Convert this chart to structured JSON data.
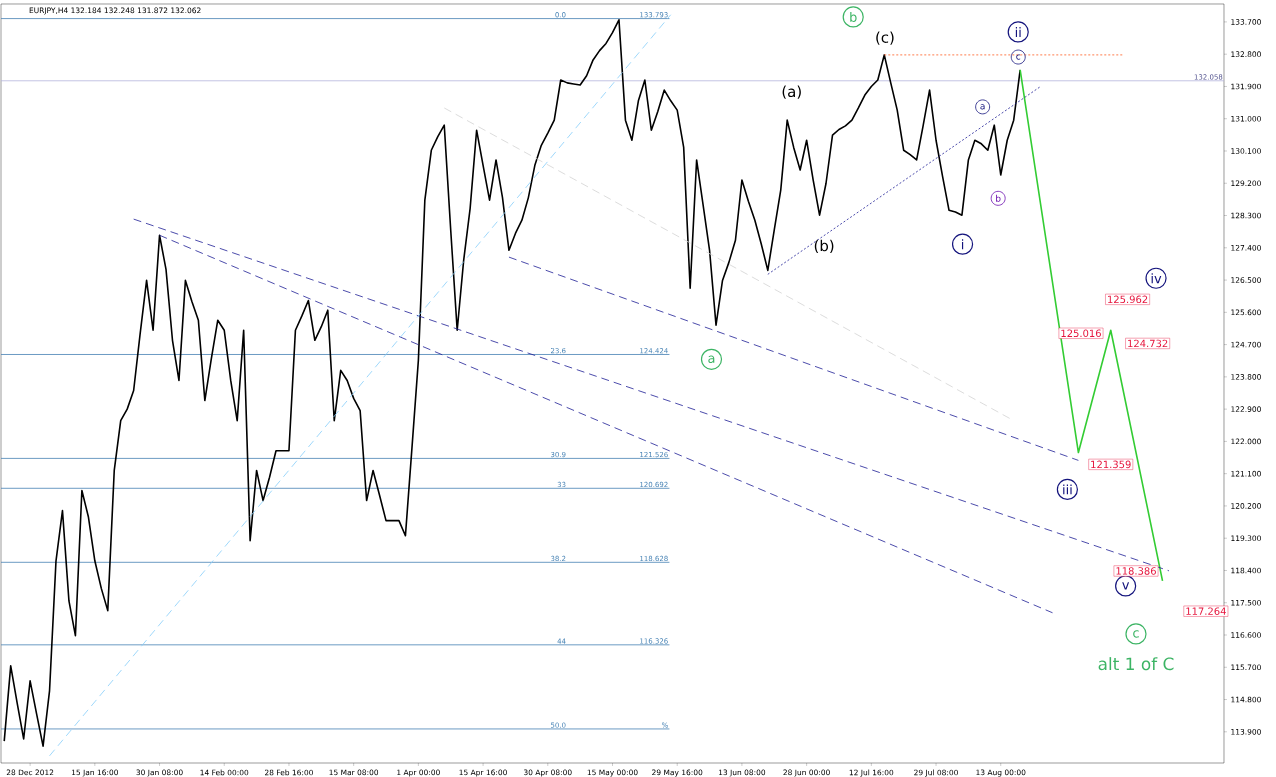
{
  "chart_data": {
    "type": "line",
    "title": "EURJPY,H4  132.184 132.248 131.872 132.062",
    "categories": [
      null,
      null,
      null,
      null,
      "28 Dec 2012",
      null,
      null,
      null,
      null,
      null,
      null,
      null,
      null,
      null,
      "15 Jan 16:00",
      null,
      null,
      null,
      null,
      null,
      null,
      null,
      null,
      null,
      "30 Jan 08:00",
      null,
      null,
      null,
      null,
      null,
      null,
      null,
      null,
      null,
      "14 Feb 00:00",
      null,
      null,
      null,
      null,
      null,
      null,
      null,
      null,
      null,
      "28 Feb 16:00",
      null,
      null,
      null,
      null,
      null,
      null,
      null,
      null,
      null,
      "15 Mar 08:00",
      null,
      null,
      null,
      null,
      null,
      null,
      null,
      null,
      null,
      "1 Apr 00:00",
      null,
      null,
      null,
      null,
      null,
      null,
      null,
      null,
      null,
      "15 Apr 16:00",
      null,
      null,
      null,
      null,
      null,
      null,
      null,
      null,
      null,
      "30 Apr 08:00",
      null,
      null,
      null,
      null,
      null,
      null,
      null,
      null,
      null,
      "15 May 00:00",
      null,
      null,
      null,
      null,
      null,
      null,
      null,
      null,
      null,
      "29 May 16:00",
      null,
      null,
      null,
      null,
      null,
      null,
      null,
      null,
      null,
      "13 Jun 08:00",
      null,
      null,
      null,
      null,
      null,
      null,
      null,
      null,
      null,
      "28 Jun 00:00",
      null,
      null,
      null,
      null,
      null,
      null,
      null,
      null,
      null,
      "12 Jul 16:00",
      null,
      null,
      null,
      null,
      null,
      null,
      null,
      null,
      null,
      "29 Jul 08:00",
      null,
      null,
      null,
      null,
      null,
      null,
      null,
      null,
      null,
      "13 Aug 00:00",
      null,
      null,
      null,
      null,
      null,
      null,
      null,
      null,
      null,
      null,
      null,
      null,
      null,
      null,
      null,
      null,
      null,
      null,
      null,
      null,
      null,
      null,
      null,
      null,
      null,
      null,
      null,
      null,
      null,
      null,
      null,
      null,
      null,
      null
    ],
    "ylim": [
      113.03,
      134.2
    ],
    "yticks": [
      {
        "value": 113.9,
        "label": "113.900"
      },
      {
        "value": 114.8,
        "label": "114.800"
      },
      {
        "value": 115.7,
        "label": "115.700"
      },
      {
        "value": 116.6,
        "label": "116.600"
      },
      {
        "value": 117.5,
        "label": "117.500"
      },
      {
        "value": 118.4,
        "label": "118.400"
      },
      {
        "value": 119.3,
        "label": "119.300"
      },
      {
        "value": 120.2,
        "label": "120.200"
      },
      {
        "value": 121.1,
        "label": "121.100"
      },
      {
        "value": 122.0,
        "label": "122.000"
      },
      {
        "value": 122.9,
        "label": "122.900"
      },
      {
        "value": 123.8,
        "label": "123.800"
      },
      {
        "value": 124.7,
        "label": "124.700"
      },
      {
        "value": 125.6,
        "label": "125.600"
      },
      {
        "value": 126.5,
        "label": "126.500"
      },
      {
        "value": 127.4,
        "label": "127.400"
      },
      {
        "value": 128.3,
        "label": "128.300"
      },
      {
        "value": 129.2,
        "label": "129.200"
      },
      {
        "value": 130.1,
        "label": "130.100"
      },
      {
        "value": 131.0,
        "label": "131.000"
      },
      {
        "value": 131.9,
        "label": "131.900"
      },
      {
        "value": 132.8,
        "label": "132.800"
      },
      {
        "value": 133.7,
        "label": "133.700"
      }
    ],
    "series": [
      {
        "color": "#000000",
        "values": [
          113.64,
          115.74,
          114.7,
          113.7,
          115.32,
          114.4,
          113.5,
          115.04,
          118.67,
          120.07,
          117.55,
          116.58,
          120.63,
          119.9,
          118.67,
          117.9,
          117.28,
          121.19,
          122.58,
          122.9,
          123.42,
          125.0,
          126.49,
          125.1,
          127.75,
          126.8,
          124.82,
          123.7,
          126.49,
          125.9,
          125.38,
          123.14,
          124.3,
          125.38,
          125.1,
          123.7,
          122.58,
          125.1,
          119.23,
          121.19,
          120.35,
          121.0,
          121.74,
          121.74,
          121.74,
          125.1,
          125.5,
          125.93,
          124.82,
          125.2,
          125.66,
          122.58,
          123.98,
          123.7,
          123.2,
          122.86,
          120.35,
          121.19,
          120.5,
          119.79,
          119.79,
          119.79,
          119.37,
          121.8,
          124.26,
          128.73,
          130.12,
          130.5,
          130.82,
          127.89,
          125.1,
          127.05,
          128.5,
          130.68,
          129.7,
          128.73,
          129.85,
          128.8,
          127.33,
          127.8,
          128.17,
          128.8,
          129.7,
          130.26,
          130.6,
          130.96,
          132.08,
          132.0,
          131.97,
          131.94,
          132.2,
          132.64,
          132.9,
          133.1,
          133.4,
          133.76,
          130.96,
          130.4,
          131.5,
          132.08,
          130.68,
          131.2,
          131.8,
          131.5,
          131.24,
          130.2,
          126.27,
          129.85,
          128.6,
          127.33,
          125.24,
          126.49,
          127.0,
          127.61,
          129.29,
          128.7,
          128.17,
          127.5,
          126.77,
          127.9,
          129.01,
          130.96,
          130.2,
          129.57,
          130.4,
          129.3,
          128.31,
          129.2,
          130.54,
          130.7,
          130.8,
          130.96,
          131.3,
          131.66,
          131.9,
          132.08,
          132.78,
          132.0,
          131.24,
          130.12,
          130.0,
          129.85,
          130.8,
          131.8,
          130.4,
          129.4,
          128.45,
          128.4,
          128.31,
          129.85,
          130.4,
          130.3,
          130.12,
          130.82,
          129.43,
          130.4,
          130.96,
          132.36,
          null,
          null,
          null,
          null,
          null,
          null,
          null,
          null,
          null,
          null,
          null,
          null,
          null,
          null,
          null,
          null,
          null,
          null,
          null,
          null,
          null,
          null,
          null,
          null,
          null,
          null,
          null,
          null,
          null,
          null,
          null
        ]
      },
      {
        "color": "#33cc33",
        "values": [
          null,
          null,
          null,
          null,
          null,
          null,
          null,
          null,
          null,
          null,
          null,
          null,
          null,
          null,
          null,
          null,
          null,
          null,
          null,
          null,
          null,
          null,
          null,
          null,
          null,
          null,
          null,
          null,
          null,
          null,
          null,
          null,
          null,
          null,
          null,
          null,
          null,
          null,
          null,
          null,
          null,
          null,
          null,
          null,
          null,
          null,
          null,
          null,
          null,
          null,
          null,
          null,
          null,
          null,
          null,
          null,
          null,
          null,
          null,
          null,
          null,
          null,
          null,
          null,
          null,
          null,
          null,
          null,
          null,
          null,
          null,
          null,
          null,
          null,
          null,
          null,
          null,
          null,
          null,
          null,
          null,
          null,
          null,
          null,
          null,
          null,
          null,
          null,
          null,
          null,
          null,
          null,
          null,
          null,
          null,
          null,
          null,
          null,
          null,
          null,
          null,
          null,
          null,
          null,
          null,
          null,
          null,
          null,
          null,
          null,
          null,
          null,
          null,
          null,
          null,
          null,
          null,
          null,
          null,
          null,
          null,
          null,
          null,
          null,
          null,
          null,
          null,
          null,
          null,
          null,
          null,
          null,
          null,
          null,
          null,
          null,
          null,
          null,
          null,
          null,
          null,
          null,
          null,
          null,
          null,
          null,
          null,
          null,
          null,
          null,
          null,
          null,
          null,
          null,
          null,
          null,
          null,
          132.36,
          null,
          null,
          null,
          null,
          null,
          null,
          null,
          null,
          121.69,
          null,
          null,
          null,
          null,
          125.1,
          null,
          null,
          null,
          null,
          null,
          null,
          null,
          118.11,
          null,
          null,
          null,
          null,
          null,
          null,
          null,
          null,
          null
        ]
      },
      {
        "color": "#1e1e96",
        "line_style": "dashed",
        "values": [
          null,
          null,
          null,
          null,
          null,
          null,
          null,
          null,
          null,
          null,
          null,
          null,
          null,
          null,
          null,
          null,
          null,
          null,
          null,
          null,
          128.2,
          null,
          null,
          null,
          null,
          null,
          null,
          null,
          null,
          null,
          null,
          null,
          null,
          null,
          null,
          null,
          null,
          null,
          null,
          null,
          null,
          null,
          null,
          null,
          null,
          null,
          null,
          null,
          null,
          null,
          null,
          null,
          null,
          null,
          null,
          null,
          null,
          null,
          null,
          null,
          null,
          null,
          null,
          null,
          null,
          null,
          null,
          null,
          null,
          null,
          null,
          null,
          null,
          null,
          null,
          null,
          null,
          null,
          null,
          null,
          null,
          null,
          null,
          null,
          null,
          null,
          null,
          null,
          null,
          null,
          null,
          null,
          null,
          null,
          null,
          null,
          null,
          null,
          null,
          null,
          null,
          null,
          null,
          null,
          null,
          null,
          null,
          null,
          null,
          null,
          null,
          null,
          null,
          null,
          null,
          null,
          null,
          null,
          null,
          null,
          null,
          null,
          null,
          null,
          null,
          null,
          null,
          null,
          null,
          null,
          null,
          null,
          null,
          null,
          null,
          null,
          null,
          null,
          null,
          null,
          null,
          null,
          null,
          null,
          null,
          null,
          null,
          null,
          null,
          null,
          null,
          null,
          null,
          null,
          null,
          null,
          null,
          null,
          null,
          null,
          null,
          null,
          null,
          null,
          null,
          null,
          null,
          null,
          null,
          null,
          null,
          null,
          null,
          null,
          null,
          null,
          null,
          null,
          null,
          null,
          118.39,
          null,
          null,
          null,
          null,
          null,
          null,
          null,
          null
        ]
      },
      {
        "color": "#1e1e96",
        "line_style": "dashed",
        "values": [
          null,
          null,
          null,
          null,
          null,
          null,
          null,
          null,
          null,
          null,
          null,
          null,
          null,
          null,
          null,
          null,
          null,
          null,
          null,
          null,
          null,
          null,
          null,
          null,
          127.75,
          null,
          null,
          null,
          null,
          null,
          null,
          null,
          null,
          null,
          null,
          null,
          null,
          null,
          null,
          null,
          null,
          null,
          null,
          null,
          null,
          null,
          null,
          null,
          null,
          null,
          null,
          null,
          null,
          null,
          null,
          null,
          null,
          null,
          null,
          null,
          null,
          null,
          null,
          null,
          null,
          null,
          null,
          null,
          null,
          null,
          null,
          null,
          null,
          null,
          null,
          null,
          null,
          null,
          null,
          null,
          null,
          null,
          null,
          null,
          null,
          null,
          null,
          null,
          null,
          null,
          null,
          null,
          null,
          null,
          null,
          null,
          null,
          null,
          null,
          null,
          null,
          null,
          null,
          null,
          null,
          null,
          null,
          null,
          null,
          null,
          null,
          null,
          null,
          null,
          null,
          null,
          null,
          null,
          null,
          null,
          null,
          null,
          null,
          null,
          null,
          null,
          null,
          null,
          null,
          null,
          null,
          null,
          null,
          null,
          null,
          null,
          null,
          null,
          null,
          null,
          null,
          null,
          null,
          null,
          null,
          null,
          null,
          null,
          null,
          null,
          null,
          null,
          null,
          null,
          null,
          null,
          null,
          null,
          null,
          null,
          null,
          null,
          117.22,
          null,
          null,
          null,
          null,
          null,
          null,
          null,
          null,
          null,
          null,
          null,
          null,
          null,
          null,
          null,
          null,
          null,
          null,
          null,
          null,
          null,
          null,
          null,
          null,
          null,
          null
        ]
      },
      {
        "color": "#1e1e96",
        "line_style": "dashed",
        "values": [
          null,
          null,
          null,
          null,
          null,
          null,
          null,
          null,
          null,
          null,
          null,
          null,
          null,
          null,
          null,
          null,
          null,
          null,
          null,
          null,
          null,
          null,
          null,
          null,
          null,
          null,
          null,
          null,
          null,
          null,
          null,
          null,
          null,
          null,
          null,
          null,
          null,
          null,
          null,
          null,
          null,
          null,
          null,
          null,
          null,
          null,
          null,
          null,
          null,
          null,
          null,
          null,
          null,
          null,
          null,
          null,
          null,
          null,
          null,
          null,
          null,
          null,
          null,
          null,
          null,
          null,
          null,
          null,
          null,
          null,
          null,
          null,
          null,
          null,
          null,
          null,
          null,
          null,
          127.14,
          null,
          null,
          null,
          null,
          null,
          null,
          null,
          null,
          null,
          null,
          null,
          null,
          null,
          null,
          null,
          null,
          null,
          null,
          null,
          null,
          null,
          null,
          null,
          null,
          null,
          null,
          null,
          null,
          null,
          null,
          null,
          null,
          null,
          null,
          null,
          null,
          null,
          null,
          null,
          null,
          null,
          null,
          null,
          null,
          null,
          null,
          null,
          null,
          null,
          null,
          null,
          null,
          null,
          null,
          null,
          null,
          null,
          null,
          null,
          null,
          null,
          null,
          null,
          null,
          null,
          null,
          null,
          null,
          null,
          null,
          null,
          null,
          null,
          null,
          null,
          null,
          null,
          null,
          null,
          null,
          null,
          null,
          null,
          null,
          null,
          null,
          null,
          121.47,
          null,
          null,
          null,
          null,
          null,
          null,
          null,
          null,
          null,
          null,
          null,
          null,
          null,
          null,
          null,
          null,
          null,
          null,
          null,
          null,
          null,
          null
        ]
      },
      {
        "color": "#87cefa",
        "line_style": "dashed",
        "values": [
          null,
          null,
          null,
          null,
          null,
          null,
          null,
          113.23,
          null,
          null,
          null,
          null,
          null,
          null,
          null,
          null,
          null,
          null,
          null,
          null,
          null,
          null,
          null,
          null,
          null,
          null,
          null,
          null,
          null,
          null,
          null,
          null,
          null,
          null,
          null,
          null,
          null,
          null,
          null,
          null,
          null,
          null,
          null,
          null,
          null,
          null,
          null,
          null,
          null,
          null,
          null,
          null,
          null,
          null,
          null,
          null,
          null,
          null,
          null,
          null,
          null,
          null,
          null,
          null,
          null,
          null,
          null,
          null,
          null,
          null,
          null,
          null,
          null,
          null,
          null,
          null,
          null,
          null,
          null,
          null,
          null,
          null,
          null,
          null,
          null,
          null,
          null,
          null,
          null,
          null,
          null,
          null,
          null,
          null,
          null,
          null,
          null,
          null,
          null,
          null,
          null,
          null,
          null,
          133.9,
          null,
          null,
          null,
          null,
          null,
          null,
          null,
          null,
          null,
          null,
          null,
          null,
          null,
          null,
          null,
          null,
          null,
          null,
          null,
          null,
          null,
          null,
          null,
          null,
          null,
          null,
          null,
          null,
          null,
          null,
          null,
          null,
          null,
          null,
          null,
          null,
          null,
          null,
          null,
          null,
          null,
          null,
          null,
          null,
          null,
          null,
          null,
          null,
          null,
          null,
          null,
          null,
          null,
          null,
          null,
          null,
          null,
          null,
          null,
          null,
          null,
          null,
          null,
          null,
          null,
          null,
          null,
          null,
          null,
          null,
          null,
          null,
          null,
          null,
          null,
          null,
          null,
          null,
          null,
          null,
          null,
          null,
          null,
          null,
          null
        ]
      },
      {
        "color": "#d3d3d3",
        "line_style": "dashed",
        "values": [
          null,
          null,
          null,
          null,
          null,
          null,
          null,
          null,
          null,
          null,
          null,
          null,
          null,
          null,
          null,
          null,
          null,
          null,
          null,
          null,
          null,
          null,
          null,
          null,
          null,
          null,
          null,
          null,
          null,
          null,
          null,
          null,
          null,
          null,
          null,
          null,
          null,
          null,
          null,
          null,
          null,
          null,
          null,
          null,
          null,
          null,
          null,
          null,
          null,
          null,
          null,
          null,
          null,
          null,
          null,
          null,
          null,
          null,
          null,
          null,
          null,
          null,
          null,
          null,
          null,
          null,
          null,
          null,
          131.3,
          null,
          null,
          null,
          null,
          null,
          null,
          null,
          null,
          null,
          null,
          null,
          null,
          null,
          null,
          null,
          null,
          null,
          null,
          null,
          null,
          null,
          null,
          null,
          null,
          null,
          null,
          null,
          null,
          null,
          null,
          null,
          null,
          null,
          null,
          null,
          null,
          null,
          null,
          null,
          null,
          null,
          null,
          null,
          null,
          null,
          null,
          null,
          null,
          null,
          null,
          null,
          null,
          null,
          null,
          null,
          null,
          null,
          null,
          null,
          null,
          null,
          null,
          null,
          null,
          null,
          null,
          null,
          null,
          null,
          null,
          null,
          null,
          null,
          null,
          null,
          null,
          null,
          null,
          null,
          null,
          null,
          null,
          null,
          null,
          null,
          null,
          null,
          122.58,
          null,
          null,
          null,
          null,
          null,
          null,
          null,
          null,
          null,
          null,
          null,
          null,
          null,
          null,
          null,
          null,
          null,
          null,
          null,
          null,
          null,
          null,
          null,
          null,
          null,
          null,
          null,
          null,
          null,
          null,
          null,
          null
        ]
      },
      {
        "color": "#1e1e96",
        "line_style": "dotted",
        "values": [
          null,
          null,
          null,
          null,
          null,
          null,
          null,
          null,
          null,
          null,
          null,
          null,
          null,
          null,
          null,
          null,
          null,
          null,
          null,
          null,
          null,
          null,
          null,
          null,
          null,
          null,
          null,
          null,
          null,
          null,
          null,
          null,
          null,
          null,
          null,
          null,
          null,
          null,
          null,
          null,
          null,
          null,
          null,
          null,
          null,
          null,
          null,
          null,
          null,
          null,
          null,
          null,
          null,
          null,
          null,
          null,
          null,
          null,
          null,
          null,
          null,
          null,
          null,
          null,
          null,
          null,
          null,
          null,
          null,
          null,
          null,
          null,
          null,
          null,
          null,
          null,
          null,
          null,
          null,
          null,
          null,
          null,
          null,
          null,
          null,
          null,
          null,
          null,
          null,
          null,
          null,
          null,
          null,
          null,
          null,
          null,
          null,
          null,
          null,
          null,
          null,
          null,
          null,
          null,
          null,
          null,
          null,
          null,
          null,
          null,
          null,
          null,
          null,
          null,
          null,
          null,
          null,
          null,
          126.66,
          null,
          null,
          null,
          null,
          null,
          null,
          null,
          null,
          null,
          null,
          null,
          null,
          null,
          null,
          null,
          null,
          null,
          null,
          null,
          null,
          null,
          null,
          null,
          null,
          null,
          null,
          null,
          null,
          null,
          null,
          null,
          null,
          null,
          null,
          null,
          null,
          null,
          null,
          null,
          null,
          null,
          131.88,
          null,
          null,
          null,
          null,
          null,
          null,
          null,
          null,
          null,
          null,
          null,
          null,
          null,
          null,
          null,
          null,
          null,
          null,
          null,
          null,
          null,
          null,
          null,
          null,
          null,
          null,
          null,
          null
        ]
      },
      {
        "color": "#ff5a1e",
        "line_style": "dotted",
        "values": [
          null,
          null,
          null,
          null,
          null,
          null,
          null,
          null,
          null,
          null,
          null,
          null,
          null,
          null,
          null,
          null,
          null,
          null,
          null,
          null,
          null,
          null,
          null,
          null,
          null,
          null,
          null,
          null,
          null,
          null,
          null,
          null,
          null,
          null,
          null,
          null,
          null,
          null,
          null,
          null,
          null,
          null,
          null,
          null,
          null,
          null,
          null,
          null,
          null,
          null,
          null,
          null,
          null,
          null,
          null,
          null,
          null,
          null,
          null,
          null,
          null,
          null,
          null,
          null,
          null,
          null,
          null,
          null,
          null,
          null,
          null,
          null,
          null,
          null,
          null,
          null,
          null,
          null,
          null,
          null,
          null,
          null,
          null,
          null,
          null,
          null,
          null,
          null,
          null,
          null,
          null,
          null,
          null,
          null,
          null,
          null,
          null,
          null,
          null,
          null,
          null,
          null,
          null,
          null,
          null,
          null,
          null,
          null,
          null,
          null,
          null,
          null,
          null,
          null,
          null,
          null,
          null,
          null,
          null,
          null,
          null,
          null,
          null,
          null,
          null,
          null,
          null,
          null,
          null,
          null,
          null,
          null,
          null,
          null,
          null,
          null,
          132.78,
          null,
          null,
          null,
          null,
          null,
          null,
          null,
          null,
          null,
          null,
          null,
          null,
          null,
          null,
          null,
          null,
          null,
          null,
          null,
          null,
          null,
          null,
          null,
          null,
          null,
          null,
          null,
          null,
          null,
          null,
          null,
          null,
          null,
          null,
          null,
          null,
          132.78,
          null,
          null,
          null,
          null,
          null,
          null,
          null,
          null,
          null,
          null,
          null,
          null,
          null,
          null,
          null
        ]
      }
    ],
    "ref_lines": [
      {
        "axis": "y",
        "value": 133.793,
        "label": "133.793",
        "color": "#4682b4"
      },
      {
        "axis": "y",
        "value": 124.424,
        "label": "124.424",
        "color": "#4682b4"
      },
      {
        "axis": "y",
        "value": 121.526,
        "label": "121.526",
        "color": "#4682b4"
      },
      {
        "axis": "y",
        "value": 120.692,
        "label": "120.692",
        "color": "#4682b4"
      },
      {
        "axis": "y",
        "value": 118.628,
        "label": "118.628",
        "color": "#4682b4"
      },
      {
        "axis": "y",
        "value": 116.326,
        "label": "116.326",
        "color": "#4682b4"
      },
      {
        "axis": "y",
        "value": 113.98,
        "label": "%",
        "color": "#4682b4"
      },
      {
        "axis": "y",
        "value": 132.058,
        "label": "132.058",
        "color": "#b4b4dc"
      }
    ],
    "annotations": [
      "b",
      "(c)",
      "ii",
      "c",
      "(a)",
      "a",
      "b",
      "i",
      "(b)",
      "a",
      "iv",
      "iii",
      "v",
      "c",
      "alt 1 of C",
      "125.962",
      "125.016",
      "124.732",
      "121.359",
      "118.386",
      "117.264",
      "0.0",
      "23.6",
      "30.9",
      "33",
      "38.2",
      "44",
      "50.0"
    ]
  }
}
